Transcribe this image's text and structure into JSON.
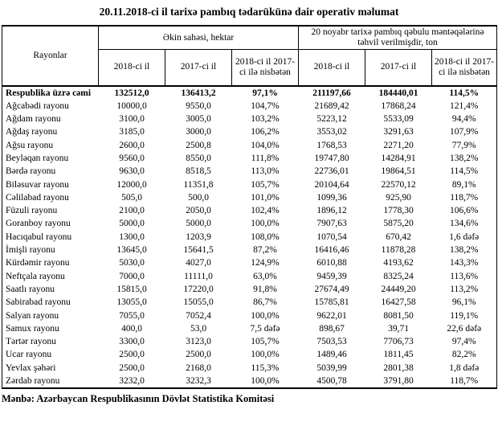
{
  "title": "20.11.2018-ci il tarixə pambıq tədarükünə dair operativ məlumat",
  "footer": "Mənbə: Azərbaycan Respublikasının Dövlət Statistika Komitəsi",
  "colors": {
    "text": "#000000",
    "background": "#ffffff",
    "border": "#000000"
  },
  "table": {
    "corner_header": "Rayonlar",
    "group_headers": [
      "Əkin sahəsi, hektar",
      "20 noyabr tarixə pambıq qəbulu məntəqələrinə təhvil verilmişdir, ton"
    ],
    "sub_headers": [
      "2018-ci il",
      "2017-ci il",
      "2018-ci il 2017-ci ilə nisbətən",
      "2018-ci il",
      "2017-ci il",
      "2018-ci il 2017-ci ilə nisbətən"
    ],
    "rows": [
      {
        "region": "Respublika üzrə cəmi",
        "is_total": true,
        "values": [
          "132512,0",
          "136413,2",
          "97,1%",
          "211197,66",
          "184440,01",
          "114,5%"
        ]
      },
      {
        "region": "Ağcabədi rayonu",
        "is_total": false,
        "values": [
          "10000,0",
          "9550,0",
          "104,7%",
          "21689,42",
          "17868,24",
          "121,4%"
        ]
      },
      {
        "region": "Ağdam rayonu",
        "is_total": false,
        "values": [
          "3100,0",
          "3005,0",
          "103,2%",
          "5223,12",
          "5533,09",
          "94,4%"
        ]
      },
      {
        "region": "Ağdaş rayonu",
        "is_total": false,
        "values": [
          "3185,0",
          "3000,0",
          "106,2%",
          "3553,02",
          "3291,63",
          "107,9%"
        ]
      },
      {
        "region": "Ağsu rayonu",
        "is_total": false,
        "values": [
          "2600,0",
          "2500,8",
          "104,0%",
          "1768,53",
          "2271,20",
          "77,9%"
        ]
      },
      {
        "region": "Beyləqan rayonu",
        "is_total": false,
        "values": [
          "9560,0",
          "8550,0",
          "111,8%",
          "19747,80",
          "14284,91",
          "138,2%"
        ]
      },
      {
        "region": "Bərdə rayonu",
        "is_total": false,
        "values": [
          "9630,0",
          "8518,5",
          "113,0%",
          "22736,01",
          "19864,51",
          "114,5%"
        ]
      },
      {
        "region": "Biləsuvar rayonu",
        "is_total": false,
        "values": [
          "12000,0",
          "11351,8",
          "105,7%",
          "20104,64",
          "22570,12",
          "89,1%"
        ]
      },
      {
        "region": "Cəlilabad rayonu",
        "is_total": false,
        "values": [
          "505,0",
          "500,0",
          "101,0%",
          "1099,36",
          "925,90",
          "118,7%"
        ]
      },
      {
        "region": "Füzuli rayonu",
        "is_total": false,
        "values": [
          "2100,0",
          "2050,0",
          "102,4%",
          "1896,12",
          "1778,30",
          "106,6%"
        ]
      },
      {
        "region": "Goranboy rayonu",
        "is_total": false,
        "values": [
          "5000,0",
          "5000,0",
          "100,0%",
          "7907,63",
          "5875,20",
          "134,6%"
        ]
      },
      {
        "region": "Hacıqabul rayonu",
        "is_total": false,
        "values": [
          "1300,0",
          "1203,9",
          "108,0%",
          "1070,54",
          "670,42",
          "1,6 dəfə"
        ]
      },
      {
        "region": "İmişli rayonu",
        "is_total": false,
        "values": [
          "13645,0",
          "15641,5",
          "87,2%",
          "16416,46",
          "11878,28",
          "138,2%"
        ]
      },
      {
        "region": "Kürdəmir rayonu",
        "is_total": false,
        "values": [
          "5030,0",
          "4027,0",
          "124,9%",
          "6010,88",
          "4193,62",
          "143,3%"
        ]
      },
      {
        "region": "Neftçala rayonu",
        "is_total": false,
        "values": [
          "7000,0",
          "11111,0",
          "63,0%",
          "9459,39",
          "8325,24",
          "113,6%"
        ]
      },
      {
        "region": "Saatlı rayonu",
        "is_total": false,
        "values": [
          "15815,0",
          "17220,0",
          "91,8%",
          "27674,49",
          "24449,20",
          "113,2%"
        ]
      },
      {
        "region": "Sabirabad rayonu",
        "is_total": false,
        "values": [
          "13055,0",
          "15055,0",
          "86,7%",
          "15785,81",
          "16427,58",
          "96,1%"
        ]
      },
      {
        "region": "Salyan rayonu",
        "is_total": false,
        "values": [
          "7055,0",
          "7052,4",
          "100,0%",
          "9622,01",
          "8081,50",
          "119,1%"
        ]
      },
      {
        "region": "Samux rayonu",
        "is_total": false,
        "values": [
          "400,0",
          "53,0",
          "7,5 dəfə",
          "898,67",
          "39,71",
          "22,6 dəfə"
        ]
      },
      {
        "region": "Tərtər rayonu",
        "is_total": false,
        "values": [
          "3300,0",
          "3123,0",
          "105,7%",
          "7503,53",
          "7706,73",
          "97,4%"
        ]
      },
      {
        "region": "Ucar rayonu",
        "is_total": false,
        "values": [
          "2500,0",
          "2500,0",
          "100,0%",
          "1489,46",
          "1811,45",
          "82,2%"
        ]
      },
      {
        "region": "Yevlax şəhəri",
        "is_total": false,
        "values": [
          "2500,0",
          "2168,0",
          "115,3%",
          "5039,99",
          "2801,38",
          "1,8 dəfə"
        ]
      },
      {
        "region": "Zərdab rayonu",
        "is_total": false,
        "values": [
          "3232,0",
          "3232,3",
          "100,0%",
          "4500,78",
          "3791,80",
          "118,7%"
        ]
      }
    ]
  }
}
